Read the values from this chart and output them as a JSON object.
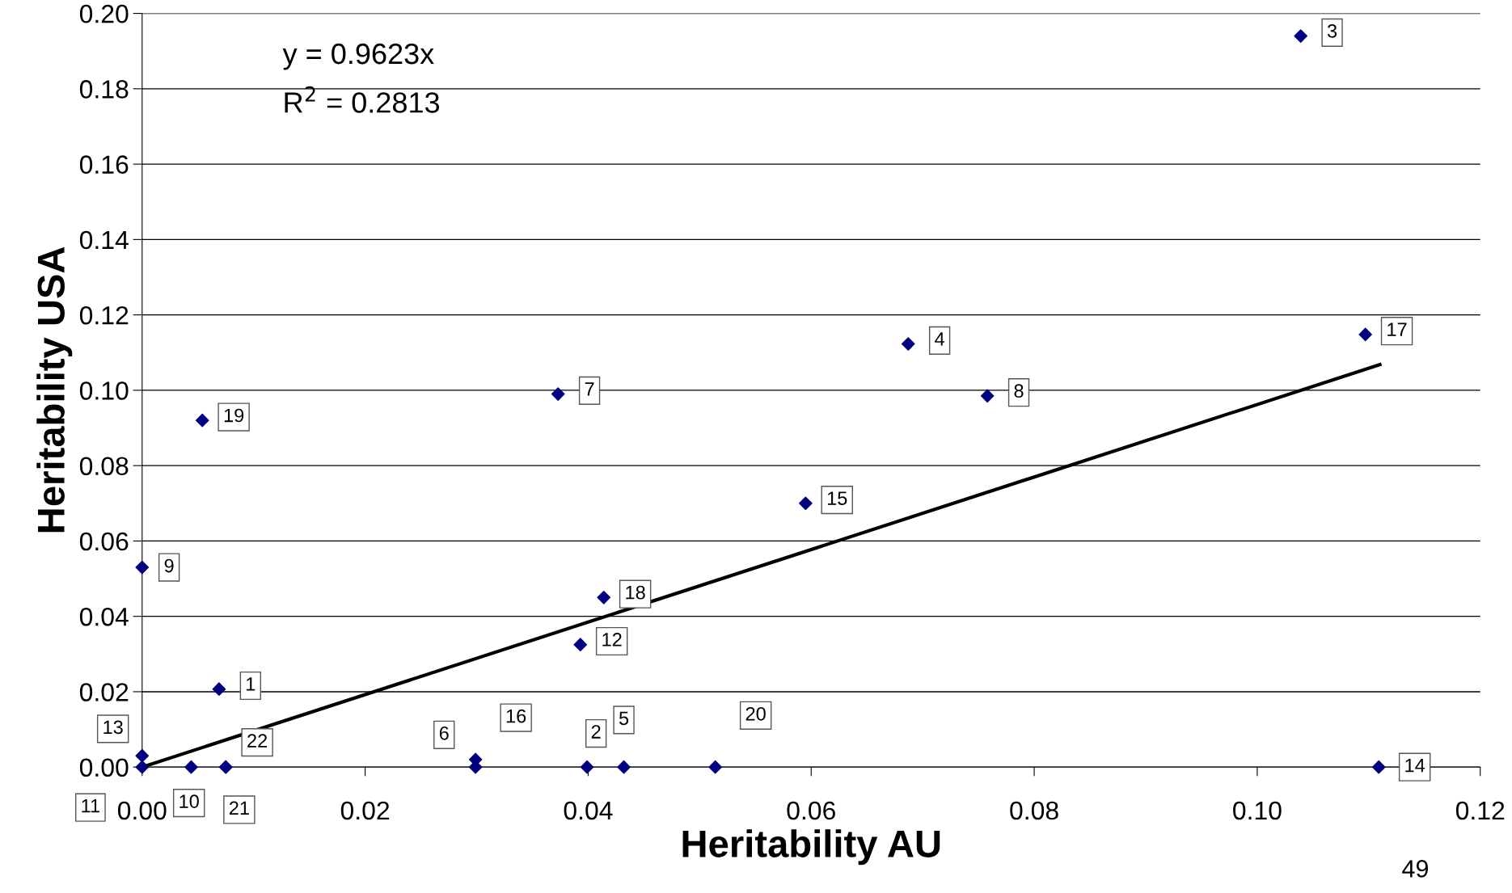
{
  "chart_data": {
    "type": "scatter",
    "xlabel": "Heritability AU",
    "ylabel": "Heritability USA",
    "xlim": [
      0,
      0.12
    ],
    "xticks": [
      {
        "value": 0,
        "label": "0.00"
      },
      0.02,
      0.04,
      0.06,
      0.08,
      {
        "value": 0.1,
        "label": "0.10"
      },
      0.12
    ],
    "ylim": [
      0,
      0.2
    ],
    "yticks": [
      {
        "value": 0,
        "label": "0.00"
      },
      0.02,
      0.04,
      0.06,
      0.08,
      {
        "value": 0.1,
        "label": "0.10"
      },
      0.12,
      0.14,
      0.16,
      0.18,
      {
        "value": 0.2,
        "label": "0.20"
      }
    ],
    "grid": "y",
    "legend": false,
    "series": [
      {
        "type": "scatter",
        "color": "#000080",
        "marker": "diamond",
        "x": [
          0.0069,
          0.0399,
          0.1039,
          0.0687,
          0.0432,
          0.0299,
          0.0373,
          0.0758,
          0.0,
          0.0044,
          0.0,
          0.0393,
          0.0,
          0.1109,
          0.0595,
          0.0299,
          0.1097,
          0.0414,
          0.0054,
          0.0514,
          0.0075,
          0.0075
        ],
        "values": [
          0.0207,
          0.0,
          0.194,
          0.1123,
          0.0,
          0.002,
          0.099,
          0.0985,
          0.053,
          0.0,
          0.0,
          0.0325,
          0.003,
          0.0,
          0.07,
          0.0,
          0.1148,
          0.045,
          0.092,
          0.0,
          0.0,
          0.0
        ]
      },
      {
        "type": "line",
        "color": "#000000",
        "x": [
          0,
          0.111
        ],
        "values": [
          0,
          0.1068
        ]
      }
    ],
    "annotations": [
      {
        "text": "1",
        "x": 0.0069,
        "y": 0.0207
      },
      {
        "text": "2",
        "x": 0.0399,
        "y": 0.0
      },
      {
        "text": "3",
        "x": 0.1039,
        "y": 0.194
      },
      {
        "text": "4",
        "x": 0.0687,
        "y": 0.1123
      },
      {
        "text": "5",
        "x": 0.0432,
        "y": 0.0
      },
      {
        "text": "6",
        "x": 0.0299,
        "y": 0.002
      },
      {
        "text": "7",
        "x": 0.0373,
        "y": 0.099
      },
      {
        "text": "8",
        "x": 0.0758,
        "y": 0.0985
      },
      {
        "text": "9",
        "x": 0.0,
        "y": 0.053
      },
      {
        "text": "10",
        "x": 0.0044,
        "y": 0.0
      },
      {
        "text": "11",
        "x": 0.0,
        "y": 0.0
      },
      {
        "text": "12",
        "x": 0.0393,
        "y": 0.0325
      },
      {
        "text": "13",
        "x": 0.0,
        "y": 0.003
      },
      {
        "text": "14",
        "x": 0.1109,
        "y": 0.0
      },
      {
        "text": "15",
        "x": 0.0595,
        "y": 0.07
      },
      {
        "text": "16",
        "x": 0.0299,
        "y": 0.0
      },
      {
        "text": "17",
        "x": 0.1097,
        "y": 0.1148
      },
      {
        "text": "18",
        "x": 0.0414,
        "y": 0.045
      },
      {
        "text": "19",
        "x": 0.0054,
        "y": 0.092
      },
      {
        "text": "20",
        "x": 0.0514,
        "y": 0.0
      },
      {
        "text": "21",
        "x": 0.0075,
        "y": 0.0
      },
      {
        "text": "22",
        "x": 0.0075,
        "y": 0.0
      },
      "y = 0.9623x",
      "R$^{2}$ = 0.2813",
      "49"
    ]
  }
}
